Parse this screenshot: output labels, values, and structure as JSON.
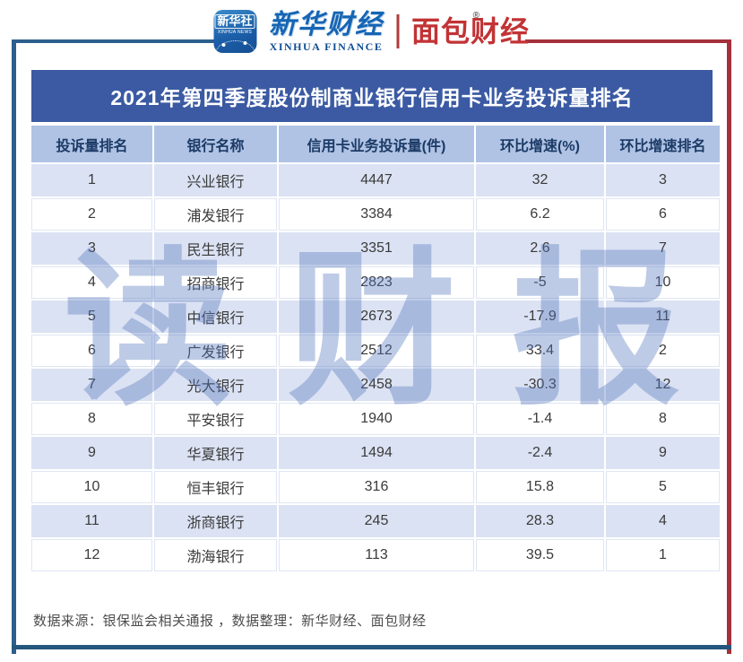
{
  "brand_header": {
    "xinhua_news_icon": {
      "cn": "新华社",
      "en": "XINHUA NEWS"
    },
    "xinhua_finance": {
      "cn": "新华财经",
      "en": "XINHUA FINANCE"
    },
    "bread_finance": {
      "cn": "面包财经",
      "reg": "®"
    }
  },
  "title": "2021年第四季度股份制商业银行信用卡业务投诉量排名",
  "watermark": "读财报",
  "table": {
    "headers": [
      "投诉量排名",
      "银行名称",
      "信用卡业务投诉量(件)",
      "环比增速(%)",
      "环比增速排名"
    ],
    "rows": [
      [
        "1",
        "兴业银行",
        "4447",
        "32",
        "3"
      ],
      [
        "2",
        "浦发银行",
        "3384",
        "6.2",
        "6"
      ],
      [
        "3",
        "民生银行",
        "3351",
        "2.6",
        "7"
      ],
      [
        "4",
        "招商银行",
        "2823",
        "-5",
        "10"
      ],
      [
        "5",
        "中信银行",
        "2673",
        "-17.9",
        "11"
      ],
      [
        "6",
        "广发银行",
        "2512",
        "33.4",
        "2"
      ],
      [
        "7",
        "光大银行",
        "2458",
        "-30.3",
        "12"
      ],
      [
        "8",
        "平安银行",
        "1940",
        "-1.4",
        "8"
      ],
      [
        "9",
        "华夏银行",
        "1494",
        "-2.4",
        "9"
      ],
      [
        "10",
        "恒丰银行",
        "316",
        "15.8",
        "5"
      ],
      [
        "11",
        "浙商银行",
        "245",
        "28.3",
        "4"
      ],
      [
        "12",
        "渤海银行",
        "113",
        "39.5",
        "1"
      ]
    ]
  },
  "footer": {
    "source_note": "数据来源：银保监会相关通报 ，数据整理：新华财经、面包财经"
  },
  "colors": {
    "title_bar": "#3b5aa3",
    "header_row": "#b0c3e4",
    "header_text": "#1b3a66",
    "odd_row": "#dbe2f3",
    "even_row": "#ffffff",
    "frame_blue": "#2d5f8e",
    "frame_red": "#a3303a",
    "watermark_blue": "rgba(84,117,189,0.38)"
  },
  "chart_data": {
    "type": "table",
    "title": "2021年第四季度股份制商业银行信用卡业务投诉量排名",
    "columns": [
      "投诉量排名",
      "银行名称",
      "信用卡业务投诉量(件)",
      "环比增速(%)",
      "环比增速排名"
    ],
    "rows": [
      [
        1,
        "兴业银行",
        4447,
        32,
        3
      ],
      [
        2,
        "浦发银行",
        3384,
        6.2,
        6
      ],
      [
        3,
        "民生银行",
        3351,
        2.6,
        7
      ],
      [
        4,
        "招商银行",
        2823,
        -5,
        10
      ],
      [
        5,
        "中信银行",
        2673,
        -17.9,
        11
      ],
      [
        6,
        "广发银行",
        2512,
        33.4,
        2
      ],
      [
        7,
        "光大银行",
        2458,
        -30.3,
        12
      ],
      [
        8,
        "平安银行",
        1940,
        -1.4,
        8
      ],
      [
        9,
        "华夏银行",
        1494,
        -2.4,
        9
      ],
      [
        10,
        "恒丰银行",
        316,
        15.8,
        5
      ],
      [
        11,
        "浙商银行",
        245,
        28.3,
        4
      ],
      [
        12,
        "渤海银行",
        113,
        39.5,
        1
      ]
    ],
    "source": "数据来源：银保监会相关通报 ，数据整理：新华财经、面包财经"
  }
}
